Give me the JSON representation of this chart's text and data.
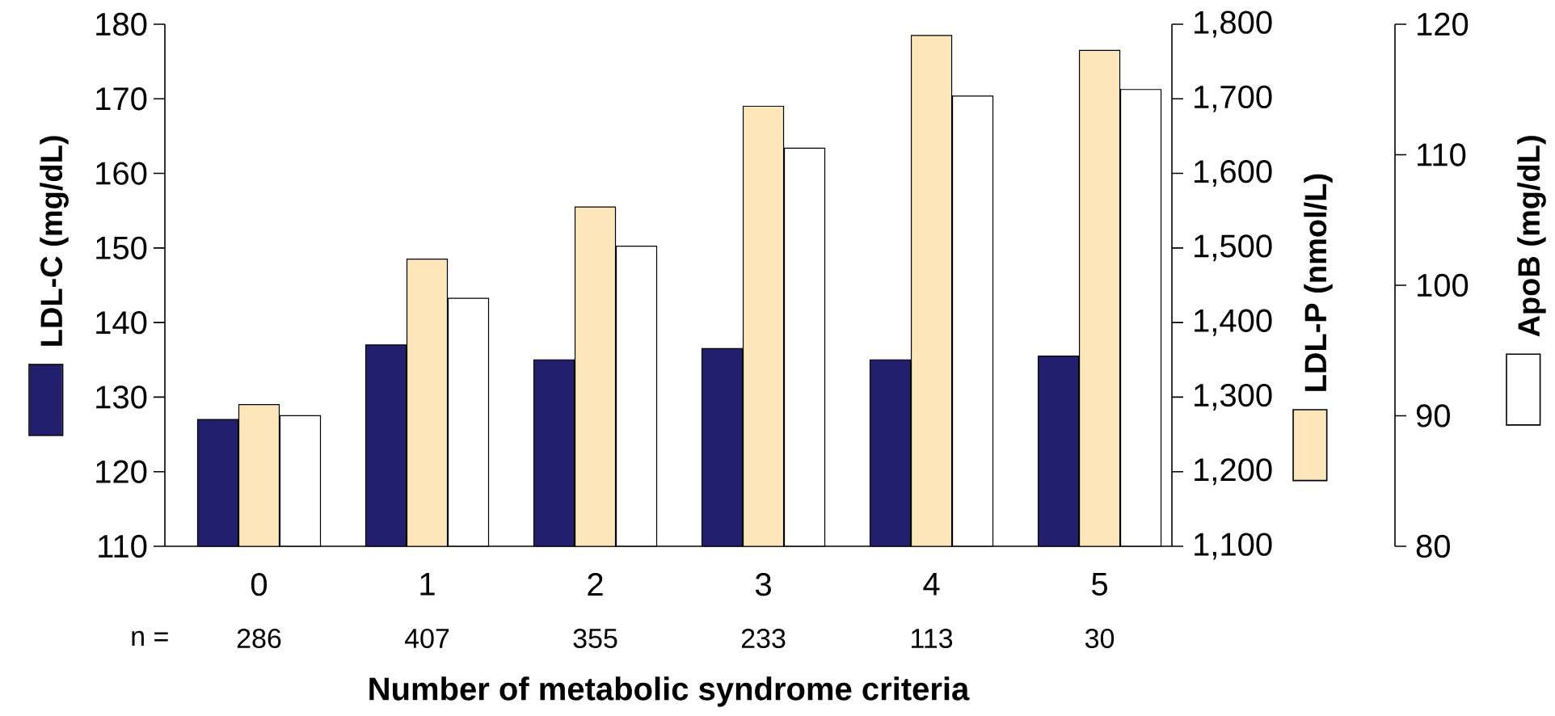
{
  "chart_data": {
    "type": "bar",
    "xlabel": "Number of metabolic syndrome criteria",
    "ylabel": "LDL-C (mg/dL)",
    "y2label": "LDL-P (nmol/L)",
    "y3label": "ApoB (mg/dL)",
    "categories": [
      "0",
      "1",
      "2",
      "3",
      "4",
      "5"
    ],
    "ylim": [
      110,
      180
    ],
    "yticks": [
      110,
      120,
      130,
      140,
      150,
      160,
      170,
      180
    ],
    "y2lim": [
      1100,
      1800
    ],
    "y2ticks": [
      {
        "value": 1100,
        "label": "1,100"
      },
      {
        "value": 1200,
        "label": "1,200"
      },
      {
        "value": 1300,
        "label": "1,300"
      },
      {
        "value": 1400,
        "label": "1,400"
      },
      {
        "value": 1500,
        "label": "1,500"
      },
      {
        "value": 1600,
        "label": "1,600"
      },
      {
        "value": 1700,
        "label": "1,700"
      },
      {
        "value": 1800,
        "label": "1,800"
      }
    ],
    "y3lim": [
      80,
      120
    ],
    "y3ticks": [
      80,
      90,
      100,
      110,
      120
    ],
    "series": [
      {
        "color": "#231f6f",
        "values": [
          127,
          137,
          135,
          136.5,
          135,
          135.5
        ]
      },
      {
        "color": "#fde6b9",
        "axis": "y2",
        "values": [
          1290,
          1485,
          1555,
          1690,
          1785,
          1765
        ]
      },
      {
        "color": "#ffffff",
        "axis": "y3",
        "values": [
          90,
          99,
          103,
          110.5,
          114.5,
          115
        ]
      }
    ],
    "annotations": [
      "n =",
      "286",
      "407",
      "355",
      "233",
      "113",
      "30"
    ]
  }
}
